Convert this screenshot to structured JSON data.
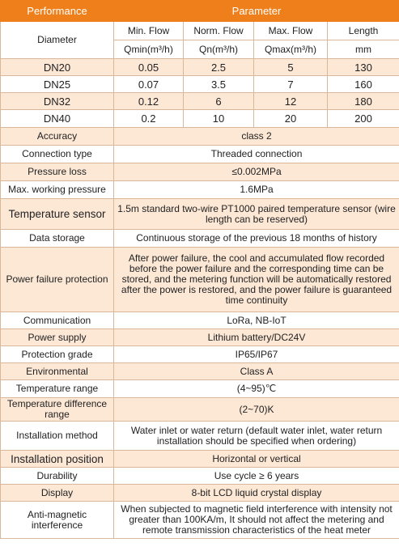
{
  "header": {
    "performance": "Performance",
    "parameter": "Parameter"
  },
  "columns": {
    "diameter": "Diameter",
    "min_flow": "Min. Flow",
    "norm_flow": "Norm. Flow",
    "max_flow": "Max. Flow",
    "length": "Length",
    "min_unit": "Qmin(m³/h)",
    "norm_unit": "Qn(m³/h)",
    "max_unit": "Qmax(m³/h)",
    "length_unit": "mm"
  },
  "sizes": [
    {
      "dn": "DN20",
      "min": "0.05",
      "norm": "2.5",
      "max": "5",
      "length": "130"
    },
    {
      "dn": "DN25",
      "min": "0.07",
      "norm": "3.5",
      "max": "7",
      "length": "160"
    },
    {
      "dn": "DN32",
      "min": "0.12",
      "norm": "6",
      "max": "12",
      "length": "180"
    },
    {
      "dn": "DN40",
      "min": "0.2",
      "norm": "10",
      "max": "20",
      "length": "200"
    }
  ],
  "specs": [
    {
      "label": "Accuracy",
      "value": "class 2"
    },
    {
      "label": "Connection type",
      "value": "Threaded connection"
    },
    {
      "label": "Pressure loss",
      "value": "≤0.002MPa"
    },
    {
      "label": "Max. working pressure",
      "value": "1.6MPa"
    },
    {
      "label": "Temperature sensor",
      "value": "1.5m standard two-wire PT1000 paired temperature sensor (wire length can be reserved)"
    },
    {
      "label": "Data storage",
      "value": "Continuous storage of the previous 18 months of history"
    },
    {
      "label": "Power failure protection",
      "value": "After power failure, the cool and accumulated flow recorded before the power failure and the corresponding time can be stored, and the metering function will be automatically restored after the power is restored, and the power failure is guaranteed time continuity"
    },
    {
      "label": "Communication",
      "value": "LoRa, NB-IoT"
    },
    {
      "label": "Power supply",
      "value": "Lithium battery/DC24V"
    },
    {
      "label": "Protection grade",
      "value": "IP65/IP67"
    },
    {
      "label": "Environmental",
      "value": "Class A"
    },
    {
      "label": "Temperature range",
      "value": "(4~95)℃"
    },
    {
      "label": "Temperature difference range",
      "value": "(2~70)K"
    },
    {
      "label": "Installation method",
      "value": "Water inlet or water return (default water inlet, water return installation should be specified when ordering)"
    },
    {
      "label": "Installation position",
      "value": "Horizontal or vertical"
    },
    {
      "label": "Durability",
      "value": "Use cycle ≥ 6 years"
    },
    {
      "label": "Display",
      "value": "8-bit LCD liquid crystal display"
    },
    {
      "label": "Anti-magnetic interference",
      "value": "When subjected to magnetic field interference with intensity not greater than 100KA/m, It should not affect the metering and remote transmission characteristics of the heat meter"
    }
  ]
}
